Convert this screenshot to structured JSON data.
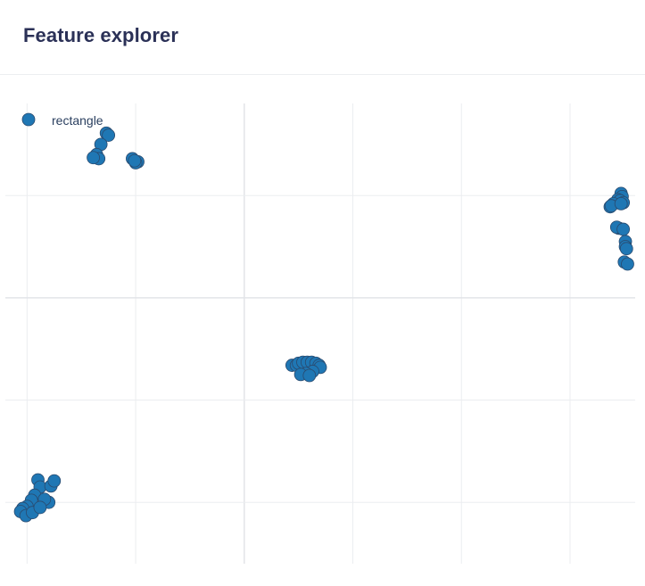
{
  "header": {
    "title": "Feature explorer"
  },
  "colors": {
    "marker_fill": "#1f77b4",
    "marker_stroke": "#2a4a6e",
    "grid": "#ebedf0",
    "zero_line": "#e2e4e8",
    "legend_text": "#2a3f5f"
  },
  "chart_data": {
    "type": "scatter",
    "title": "",
    "xlabel": "",
    "ylabel": "",
    "grid": true,
    "axis_ticks_shown": false,
    "legend_position": "top-left",
    "x_range": [
      -2.2,
      3.6
    ],
    "y_range": [
      -2.6,
      1.9
    ],
    "series": [
      {
        "name": "rectangle",
        "marker": "circle",
        "color": "#1f77b4",
        "x": [
          -1.27,
          -1.25,
          -1.32,
          -1.36,
          -1.34,
          -1.39,
          -1.03,
          -0.98,
          -1.0,
          -1.01,
          3.47,
          3.48,
          3.44,
          3.46,
          3.49,
          3.4,
          3.37,
          3.38,
          3.47,
          3.45,
          3.43,
          3.49,
          3.51,
          3.51,
          3.52,
          3.5,
          3.53,
          0.44,
          0.48,
          0.5,
          0.54,
          0.58,
          0.62,
          0.66,
          0.69,
          0.7,
          0.63,
          0.57,
          0.52,
          0.6,
          -1.9,
          -1.88,
          -1.93,
          -1.96,
          -2.0,
          -2.04,
          -2.06,
          -2.01,
          -1.95,
          -1.78,
          -1.75,
          -1.8,
          -1.84,
          -1.88
        ],
        "y": [
          1.61,
          1.59,
          1.5,
          1.4,
          1.36,
          1.37,
          1.36,
          1.33,
          1.32,
          1.34,
          1.02,
          0.99,
          0.96,
          0.95,
          0.93,
          0.92,
          0.89,
          0.9,
          0.92,
          0.68,
          0.69,
          0.67,
          0.55,
          0.5,
          0.48,
          0.35,
          0.33,
          -0.66,
          -0.66,
          -0.64,
          -0.63,
          -0.63,
          -0.63,
          -0.64,
          -0.66,
          -0.68,
          -0.72,
          -0.74,
          -0.75,
          -0.76,
          -1.78,
          -1.85,
          -1.93,
          -1.98,
          -2.04,
          -2.06,
          -2.09,
          -2.13,
          -2.1,
          -1.84,
          -1.79,
          -2.0,
          -1.97,
          -2.05
        ]
      }
    ]
  }
}
